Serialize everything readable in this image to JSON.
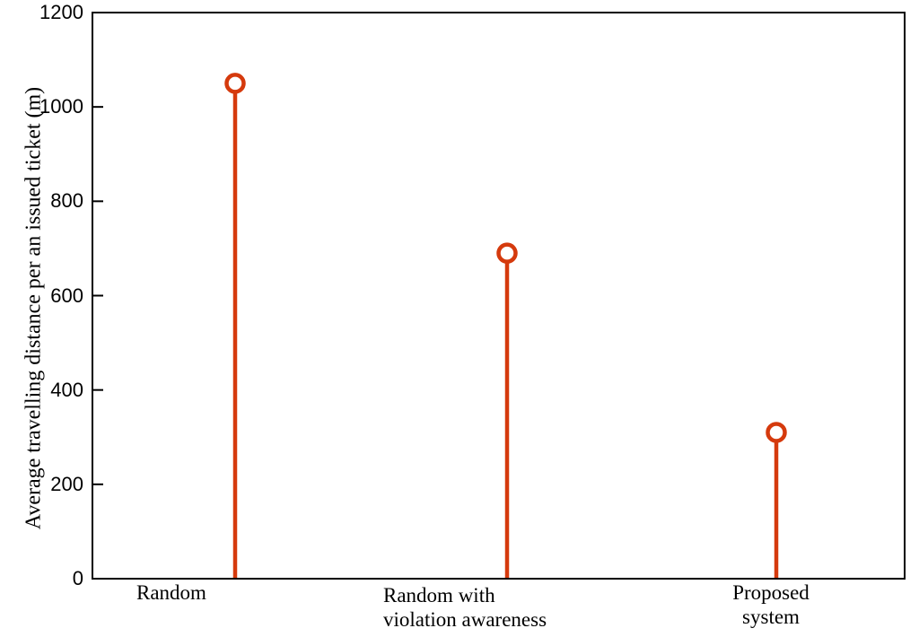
{
  "chart_data": {
    "type": "stem",
    "title": "",
    "xlabel": "",
    "ylabel": "Average travelling distance per an issued ticket (m)",
    "categories": [
      "Random",
      "Random with\nviolation awareness",
      "Proposed\nsystem"
    ],
    "values": [
      1050,
      690,
      310
    ],
    "ylim": [
      0,
      1200
    ],
    "yticks": [
      0,
      200,
      400,
      600,
      800,
      1000,
      1200
    ],
    "marker": "open-circle",
    "grid": false,
    "legend": "none",
    "colors": {
      "stem": "#d53a0d",
      "axis": "#000000",
      "background": "#ffffff"
    }
  }
}
